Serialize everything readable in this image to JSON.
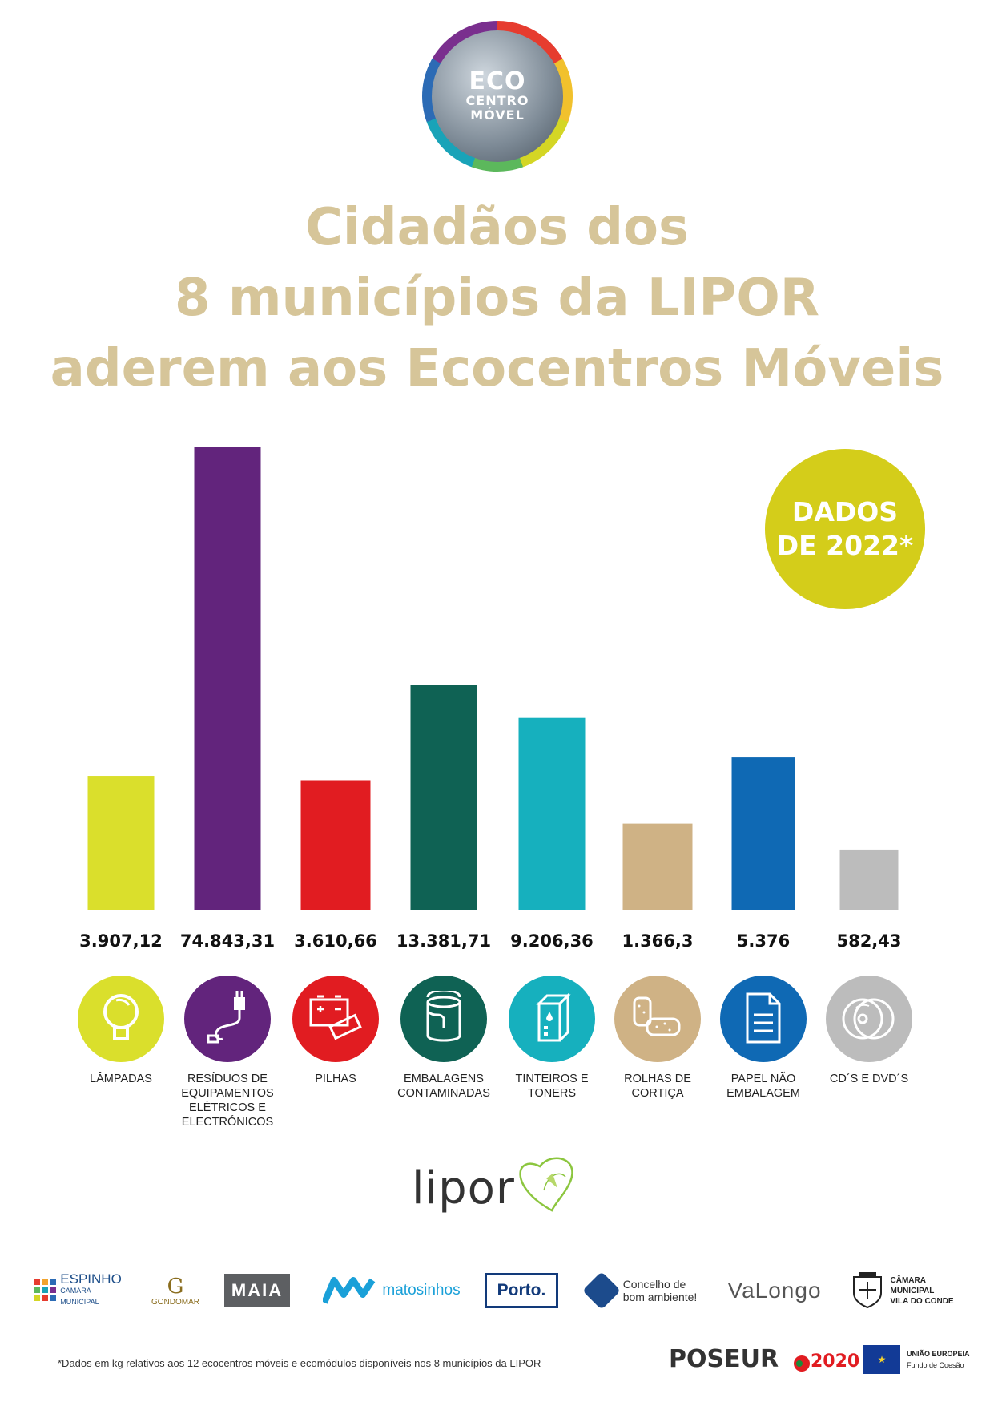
{
  "logo": {
    "line1": "ECO",
    "line2": "CENTRO",
    "line3": "MÓVEL"
  },
  "title": {
    "line1": "Cidadãos dos",
    "line2": "8 municípios da LIPOR",
    "line3": "aderem aos Ecocentros Móveis"
  },
  "badge": {
    "line1": "DADOS",
    "line2": "DE 2022*"
  },
  "chart_data": {
    "type": "bar",
    "categories": [
      "LÂMPADAS",
      "RESÍDUOS DE EQUIPAMENTOS ELÉTRICOS E ELECTRÓNICOS",
      "PILHAS",
      "EMBALAGENS CONTAMINADAS",
      "TINTEIROS E TONERS",
      "ROLHAS DE CORTIÇA",
      "PAPEL NÃO EMBALAGEM",
      "CD´S E DVD´S"
    ],
    "values": [
      3907.12,
      74843.31,
      3610.66,
      13381.71,
      9206.36,
      1366.3,
      5376,
      582.43
    ],
    "value_labels": [
      "3.907,12",
      "74.843,31",
      "3.610,66",
      "13.381,71",
      "9.206,36",
      "1.366,3",
      "5.376",
      "582,43"
    ],
    "colors": [
      "#dadf2c",
      "#62247c",
      "#e11c21",
      "#0f6254",
      "#16b0be",
      "#cfb285",
      "#0f69b4",
      "#bcbcbc"
    ],
    "icons": [
      "lightbulb-icon",
      "plug-icon",
      "battery-icon",
      "paint-can-icon",
      "ink-cartridge-icon",
      "cork-icon",
      "paper-icon",
      "disc-icon"
    ],
    "title": "",
    "xlabel": "",
    "ylabel": "",
    "grid": false,
    "legend": "none"
  },
  "categories_display": [
    [
      "LÂMPADAS"
    ],
    [
      "RESÍDUOS DE",
      "EQUIPAMENTOS",
      "ELÉTRICOS E",
      "ELECTRÓNICOS"
    ],
    [
      "PILHAS"
    ],
    [
      "EMBALAGENS",
      "CONTAMINADAS"
    ],
    [
      "TINTEIROS E",
      "TONERS"
    ],
    [
      "ROLHAS DE",
      "CORTIÇA"
    ],
    [
      "PAPEL NÃO",
      "EMBALAGEM"
    ],
    [
      "CD´S E DVD´S"
    ]
  ],
  "lipor_logo": "lipor",
  "municipalities": [
    {
      "name": "ESPINHO",
      "sub": "CÂMARA MUNICIPAL",
      "color": "#1d4e89"
    },
    {
      "name": "GONDOMAR",
      "sub": "",
      "color": "#8a6d1e"
    },
    {
      "name": "MAIA",
      "sub": "",
      "color": "#ffffff"
    },
    {
      "name": "matosinhos",
      "sub": "",
      "color": "#1aa0d8"
    },
    {
      "name": "Porto.",
      "sub": "",
      "color": "#123a7a"
    },
    {
      "name": "Concelho de",
      "sub": "bom ambiente!",
      "color": "#333333"
    },
    {
      "name": "VaLongo",
      "sub": "",
      "color": "#333333"
    },
    {
      "name": "CÂMARA MUNICIPAL",
      "sub": "VILA DO CONDE",
      "color": "#222222"
    }
  ],
  "footnote": "*Dados em kg relativos aos 12 ecocentros móveis e ecomódulos disponíveis nos 8 municípios da LIPOR",
  "funders": {
    "poseur": "POSEUR",
    "portugal": "2020",
    "ue_line1": "UNIÃO EUROPEIA",
    "ue_line2": "Fundo de Coesão"
  }
}
